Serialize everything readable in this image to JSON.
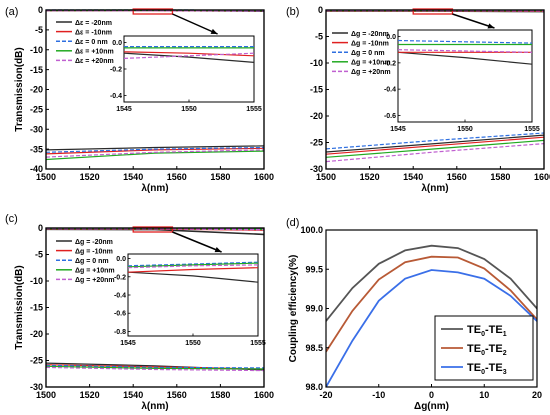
{
  "figure_colors": {
    "black": "#2b2b2b",
    "red": "#e02020",
    "blue": "#2e6fe0",
    "green": "#22aa22",
    "purple": "#c060d0",
    "rect": "#e02020"
  },
  "chart_data": [
    {
      "panel": "(a)",
      "type": "line",
      "ylabel": "Transmission(dB)",
      "xlabel": "λ(nm)",
      "xlim": [
        1500,
        1600
      ],
      "ylim": [
        -40,
        0
      ],
      "xticks": [
        "1500",
        "1520",
        "1540",
        "1560",
        "1580",
        "1600"
      ],
      "yticks": [
        "0",
        "-5",
        "-10",
        "-15",
        "-20",
        "-25",
        "-30",
        "-35",
        "-40"
      ],
      "legend_sym": "Δε",
      "series": [
        {
          "name": "Δε = -20nm",
          "color": "#2b2b2b",
          "dash": "",
          "top": [
            [
              1500,
              -0.15
            ],
            [
              1550,
              -0.1
            ],
            [
              1600,
              -0.3
            ]
          ],
          "bottom": [
            [
              1500,
              -35.2
            ],
            [
              1550,
              -34.6
            ],
            [
              1600,
              -34.2
            ]
          ]
        },
        {
          "name": "Δε = -10nm",
          "color": "#e02020",
          "dash": "",
          "top": [
            [
              1500,
              -0.1
            ],
            [
              1550,
              -0.08
            ],
            [
              1600,
              -0.15
            ]
          ],
          "bottom": [
            [
              1500,
              -36.2
            ],
            [
              1550,
              -35.2
            ],
            [
              1600,
              -34.8
            ]
          ]
        },
        {
          "name": "Δε =   0 nm",
          "color": "#2e6fe0",
          "dash": "4,2",
          "top": [
            [
              1500,
              -0.05
            ],
            [
              1550,
              -0.05
            ],
            [
              1600,
              -0.08
            ]
          ],
          "bottom": [
            [
              1500,
              -35.8
            ],
            [
              1550,
              -35.0
            ],
            [
              1600,
              -34.6
            ]
          ]
        },
        {
          "name": "Δε = +10nm",
          "color": "#22aa22",
          "dash": "",
          "top": [
            [
              1500,
              -0.08
            ],
            [
              1550,
              -0.06
            ],
            [
              1600,
              -0.1
            ]
          ],
          "bottom": [
            [
              1500,
              -37.6
            ],
            [
              1550,
              -36.0
            ],
            [
              1600,
              -35.5
            ]
          ]
        },
        {
          "name": "Δε = +20nm",
          "color": "#c060d0",
          "dash": "4,2",
          "top": [
            [
              1500,
              -0.12
            ],
            [
              1550,
              -0.12
            ],
            [
              1600,
              -0.18
            ]
          ],
          "bottom": [
            [
              1500,
              -37.0
            ],
            [
              1550,
              -35.8
            ],
            [
              1600,
              -35.2
            ]
          ]
        }
      ],
      "inset": {
        "xlim": [
          1545,
          1555
        ],
        "ylim": [
          -0.45,
          0.05
        ],
        "xticks": [
          "1545",
          "1550",
          "1555"
        ],
        "yticks": [
          "0.0",
          "-0.2",
          "-0.4"
        ],
        "series": [
          {
            "color": "#2b2b2b",
            "dash": "",
            "points": [
              [
                1545,
                -0.08
              ],
              [
                1550,
                -0.11
              ],
              [
                1555,
                -0.15
              ]
            ]
          },
          {
            "color": "#e02020",
            "dash": "",
            "points": [
              [
                1545,
                -0.07
              ],
              [
                1550,
                -0.08
              ],
              [
                1555,
                -0.1
              ]
            ]
          },
          {
            "color": "#2e6fe0",
            "dash": "4,2",
            "points": [
              [
                1545,
                -0.03
              ],
              [
                1550,
                -0.03
              ],
              [
                1555,
                -0.03
              ]
            ]
          },
          {
            "color": "#22aa22",
            "dash": "",
            "points": [
              [
                1545,
                -0.04
              ],
              [
                1550,
                -0.04
              ],
              [
                1555,
                -0.04
              ]
            ]
          },
          {
            "color": "#c060d0",
            "dash": "4,2",
            "points": [
              [
                1545,
                -0.12
              ],
              [
                1550,
                -0.1
              ],
              [
                1555,
                -0.08
              ]
            ]
          }
        ]
      }
    },
    {
      "panel": "(b)",
      "type": "line",
      "ylabel": "",
      "xlabel": "λ(nm)",
      "xlim": [
        1500,
        1600
      ],
      "ylim": [
        -30,
        0
      ],
      "xticks": [
        "1500",
        "1520",
        "1540",
        "1560",
        "1580",
        "1600"
      ],
      "yticks": [
        "0",
        "-5",
        "-10",
        "-15",
        "-20",
        "-25",
        "-30"
      ],
      "legend_sym": "Δg",
      "series": [
        {
          "name": "Δg = -20nm",
          "color": "#2b2b2b",
          "dash": "",
          "top": [
            [
              1500,
              -0.2
            ],
            [
              1550,
              -0.2
            ],
            [
              1600,
              -0.3
            ]
          ],
          "bottom": [
            [
              1500,
              -26.8
            ],
            [
              1550,
              -25.2
            ],
            [
              1600,
              -23.6
            ]
          ]
        },
        {
          "name": "Δg = -10nm",
          "color": "#e02020",
          "dash": "",
          "top": [
            [
              1500,
              -0.15
            ],
            [
              1550,
              -0.15
            ],
            [
              1600,
              -0.2
            ]
          ],
          "bottom": [
            [
              1500,
              -27.2
            ],
            [
              1550,
              -25.6
            ],
            [
              1600,
              -24.0
            ]
          ]
        },
        {
          "name": "Δg =   0 nm",
          "color": "#2e6fe0",
          "dash": "4,2",
          "top": [
            [
              1500,
              -0.05
            ],
            [
              1550,
              -0.05
            ],
            [
              1600,
              -0.08
            ]
          ],
          "bottom": [
            [
              1500,
              -26.2
            ],
            [
              1550,
              -24.6
            ],
            [
              1600,
              -23.2
            ]
          ]
        },
        {
          "name": "Δg = +10nm",
          "color": "#22aa22",
          "dash": "",
          "top": [
            [
              1500,
              -0.1
            ],
            [
              1550,
              -0.1
            ],
            [
              1600,
              -0.12
            ]
          ],
          "bottom": [
            [
              1500,
              -27.8
            ],
            [
              1550,
              -26.2
            ],
            [
              1600,
              -24.6
            ]
          ]
        },
        {
          "name": "Δg = +20nm",
          "color": "#c060d0",
          "dash": "4,2",
          "top": [
            [
              1500,
              -0.1
            ],
            [
              1550,
              -0.1
            ],
            [
              1600,
              -0.14
            ]
          ],
          "bottom": [
            [
              1500,
              -28.6
            ],
            [
              1550,
              -26.8
            ],
            [
              1600,
              -25.2
            ]
          ]
        }
      ],
      "inset": {
        "xlim": [
          1545,
          1555
        ],
        "ylim": [
          -0.65,
          0.05
        ],
        "xticks": [
          "1545",
          "1550",
          "1555"
        ],
        "yticks": [
          "0.0",
          "-0.2",
          "-0.4",
          "-0.6"
        ],
        "series": [
          {
            "color": "#2b2b2b",
            "dash": "",
            "points": [
              [
                1545,
                -0.12
              ],
              [
                1550,
                -0.16
              ],
              [
                1555,
                -0.21
              ]
            ]
          },
          {
            "color": "#e02020",
            "dash": "",
            "points": [
              [
                1545,
                -0.12
              ],
              [
                1550,
                -0.12
              ],
              [
                1555,
                -0.12
              ]
            ]
          },
          {
            "color": "#2e6fe0",
            "dash": "4,2",
            "points": [
              [
                1545,
                -0.03
              ],
              [
                1550,
                -0.04
              ],
              [
                1555,
                -0.05
              ]
            ]
          },
          {
            "color": "#22aa22",
            "dash": "",
            "points": [
              [
                1545,
                -0.06
              ],
              [
                1550,
                -0.06
              ],
              [
                1555,
                -0.06
              ]
            ]
          },
          {
            "color": "#c060d0",
            "dash": "4,2",
            "points": [
              [
                1545,
                -0.1
              ],
              [
                1550,
                -0.11
              ],
              [
                1555,
                -0.12
              ]
            ]
          }
        ]
      }
    },
    {
      "panel": "(c)",
      "type": "line",
      "ylabel": "Transmission(dB)",
      "xlabel": "λ(nm)",
      "xlim": [
        1500,
        1600
      ],
      "ylim": [
        -30,
        0
      ],
      "xticks": [
        "1500",
        "1520",
        "1540",
        "1560",
        "1580",
        "1600"
      ],
      "yticks": [
        "0",
        "-5",
        "-10",
        "-15",
        "-20",
        "-25",
        "-30"
      ],
      "legend_sym": "Δg",
      "series": [
        {
          "name": "Δg = -20nm",
          "color": "#2b2b2b",
          "dash": "",
          "top": [
            [
              1500,
              -0.25
            ],
            [
              1550,
              -0.3
            ],
            [
              1600,
              -1.2
            ]
          ],
          "bottom": [
            [
              1500,
              -25.5
            ],
            [
              1550,
              -26.0
            ],
            [
              1600,
              -26.8
            ]
          ]
        },
        {
          "name": "Δg = -10nm",
          "color": "#e02020",
          "dash": "",
          "top": [
            [
              1500,
              -0.15
            ],
            [
              1550,
              -0.15
            ],
            [
              1600,
              -0.4
            ]
          ],
          "bottom": [
            [
              1500,
              -25.8
            ],
            [
              1550,
              -26.2
            ],
            [
              1600,
              -26.6
            ]
          ]
        },
        {
          "name": "Δg =   0 nm",
          "color": "#2e6fe0",
          "dash": "4,2",
          "top": [
            [
              1500,
              -0.05
            ],
            [
              1550,
              -0.08
            ],
            [
              1600,
              -0.2
            ]
          ],
          "bottom": [
            [
              1500,
              -25.9
            ],
            [
              1550,
              -26.3
            ],
            [
              1600,
              -26.4
            ]
          ]
        },
        {
          "name": "Δg = +10nm",
          "color": "#22aa22",
          "dash": "",
          "top": [
            [
              1500,
              -0.1
            ],
            [
              1550,
              -0.1
            ],
            [
              1600,
              -0.25
            ]
          ],
          "bottom": [
            [
              1500,
              -26.1
            ],
            [
              1550,
              -26.5
            ],
            [
              1600,
              -26.6
            ]
          ]
        },
        {
          "name": "Δg = +20nm",
          "color": "#c060d0",
          "dash": "4,2",
          "top": [
            [
              1500,
              -0.1
            ],
            [
              1550,
              -0.12
            ],
            [
              1600,
              -0.3
            ]
          ],
          "bottom": [
            [
              1500,
              -26.3
            ],
            [
              1550,
              -26.7
            ],
            [
              1600,
              -26.9
            ]
          ]
        }
      ],
      "inset": {
        "xlim": [
          1545,
          1555
        ],
        "ylim": [
          -0.85,
          0.05
        ],
        "xticks": [
          "1545",
          "1550",
          "1555"
        ],
        "yticks": [
          "0.0",
          "-0.2",
          "-0.4",
          "-0.6",
          "-0.8"
        ],
        "series": [
          {
            "color": "#2b2b2b",
            "dash": "",
            "points": [
              [
                1545,
                -0.15
              ],
              [
                1550,
                -0.19
              ],
              [
                1555,
                -0.26
              ]
            ]
          },
          {
            "color": "#e02020",
            "dash": "",
            "points": [
              [
                1545,
                -0.15
              ],
              [
                1550,
                -0.12
              ],
              [
                1555,
                -0.1
              ]
            ]
          },
          {
            "color": "#2e6fe0",
            "dash": "4,2",
            "points": [
              [
                1545,
                -0.08
              ],
              [
                1550,
                -0.06
              ],
              [
                1555,
                -0.04
              ]
            ]
          },
          {
            "color": "#22aa22",
            "dash": "",
            "points": [
              [
                1545,
                -0.09
              ],
              [
                1550,
                -0.07
              ],
              [
                1555,
                -0.05
              ]
            ]
          },
          {
            "color": "#c060d0",
            "dash": "4,2",
            "points": [
              [
                1545,
                -0.1
              ],
              [
                1550,
                -0.08
              ],
              [
                1555,
                -0.07
              ]
            ]
          }
        ]
      }
    },
    {
      "panel": "(d)",
      "type": "line",
      "ylabel": "Coupling efficiency(%)",
      "xlabel": "Δg(nm)",
      "xlim": [
        -20,
        20
      ],
      "ylim": [
        98.0,
        100.0
      ],
      "xticks": [
        "-20",
        "-10",
        "0",
        "10",
        "20"
      ],
      "yticks": [
        "100.0",
        "99.5",
        "99.0",
        "98.5",
        "98.0"
      ],
      "series": [
        {
          "name": "TE0-TE1",
          "label_main": "TE",
          "sub_a": "0",
          "label_mid": "-TE",
          "sub_b": "1",
          "color": "#555555",
          "x": [
            -20,
            -15,
            -10,
            -5,
            0,
            5,
            10,
            15,
            20
          ],
          "y": [
            98.84,
            99.26,
            99.57,
            99.74,
            99.8,
            99.77,
            99.63,
            99.38,
            99.0
          ]
        },
        {
          "name": "TE0-TE2",
          "label_main": "TE",
          "sub_a": "0",
          "label_mid": "-TE",
          "sub_b": "2",
          "color": "#b85a36",
          "x": [
            -20,
            -15,
            -10,
            -5,
            0,
            5,
            10,
            15,
            20
          ],
          "y": [
            98.45,
            98.97,
            99.37,
            99.59,
            99.66,
            99.65,
            99.51,
            99.23,
            98.86
          ]
        },
        {
          "name": "TE0-TE3",
          "label_main": "TE",
          "sub_a": "0",
          "label_mid": "-TE",
          "sub_b": "3",
          "color": "#3a6fe8",
          "x": [
            -20,
            -15,
            -10,
            -5,
            0,
            5,
            10,
            15,
            20
          ],
          "y": [
            98.0,
            98.59,
            99.1,
            99.38,
            99.49,
            99.46,
            99.38,
            99.16,
            98.84
          ]
        }
      ]
    }
  ]
}
